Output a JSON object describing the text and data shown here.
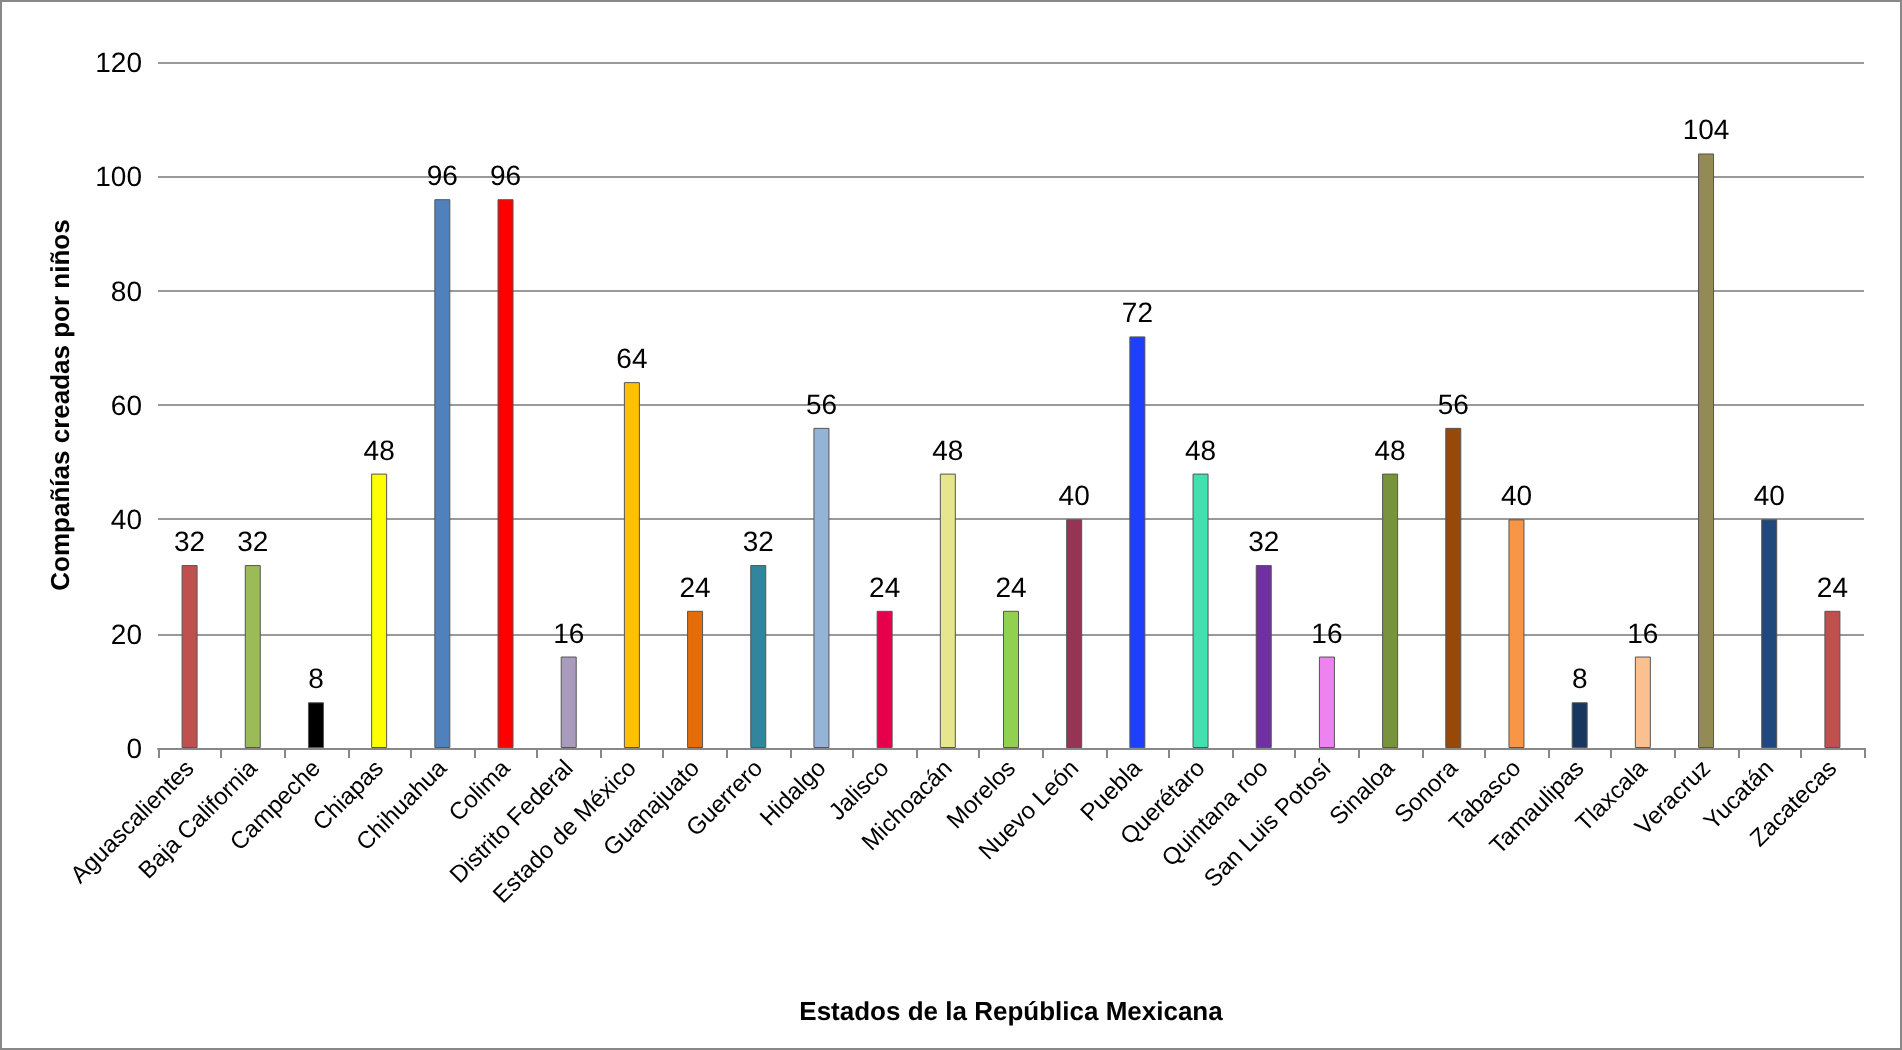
{
  "chart_data": {
    "type": "bar",
    "xlabel": "Estados de la República Mexicana",
    "ylabel": "Compañías creadas por niños",
    "categories": [
      "Aguascalientes",
      "Baja California",
      "Campeche",
      "Chiapas",
      "Chihuahua",
      "Colima",
      "Distrito Federal",
      "Estado de México",
      "Guanajuato",
      "Guerrero",
      "Hidalgo",
      "Jalisco",
      "Michoacán",
      "Morelos",
      "Nuevo León",
      "Puebla",
      "Querétaro",
      "Quintana roo",
      "San Luis Potosí",
      "Sinaloa",
      "Sonora",
      "Tabasco",
      "Tamaulipas",
      "Tlaxcala",
      "Veracruz",
      "Yucatán",
      "Zacatecas"
    ],
    "values": [
      32,
      32,
      8,
      48,
      96,
      96,
      16,
      64,
      24,
      32,
      56,
      24,
      48,
      24,
      40,
      72,
      48,
      32,
      16,
      48,
      56,
      40,
      8,
      16,
      104,
      40,
      24
    ],
    "colors": [
      "#c0504d",
      "#9bbb59",
      "#000000",
      "#ffff00",
      "#4f81bd",
      "#ff0000",
      "#a99bbd",
      "#ffc000",
      "#e46c0a",
      "#31859c",
      "#95b3d7",
      "#e6004c",
      "#e6e68c",
      "#92d050",
      "#953553",
      "#1f3fff",
      "#40e0b0",
      "#7030a0",
      "#ee82ee",
      "#77933c",
      "#984807",
      "#f79646",
      "#17375e",
      "#fac090",
      "#948a54",
      "#1f497d",
      "#c0504d"
    ],
    "ylim": [
      0,
      120
    ],
    "yticks": [
      0,
      20,
      40,
      60,
      80,
      100,
      120
    ],
    "grid": "y",
    "data_labels": true
  }
}
